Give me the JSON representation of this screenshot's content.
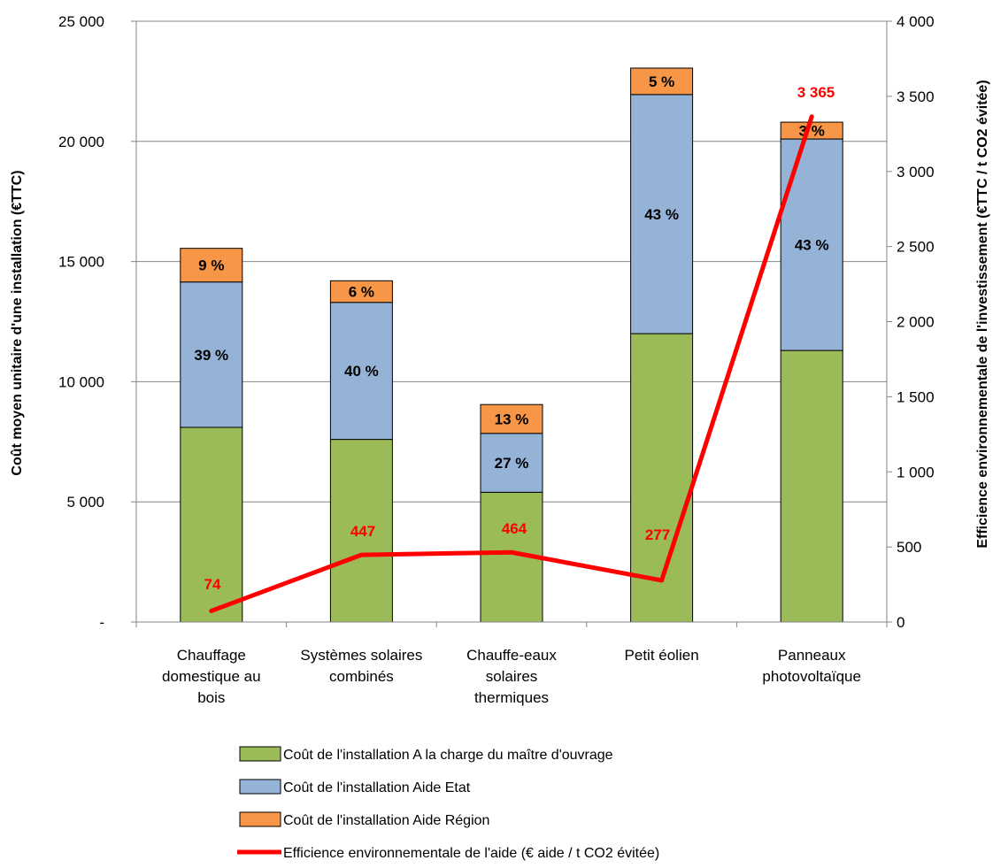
{
  "chart_data": {
    "type": "bar",
    "stacked": true,
    "categories": [
      [
        "Chauffage",
        "domestique au",
        "bois"
      ],
      [
        "Systèmes solaires",
        "combinés"
      ],
      [
        "Chauffe-eaux",
        "solaires",
        "thermiques"
      ],
      [
        "Petit éolien"
      ],
      [
        "Panneaux",
        "photovoltaïque"
      ]
    ],
    "series": [
      {
        "name": "Coût de l'installation A la charge du maître d'ouvrage",
        "color": "#9bbb59",
        "values": [
          8100,
          7600,
          5400,
          12000,
          11300
        ]
      },
      {
        "name": "Coût de l'installation Aide Etat",
        "color": "#95b3d7",
        "values": [
          6050,
          5700,
          2450,
          9950,
          8800
        ],
        "labels": [
          "39 %",
          "40 %",
          "27 %",
          "43 %",
          "43 %"
        ]
      },
      {
        "name": "Coût de l'installation Aide Région",
        "color": "#f79646",
        "values": [
          1400,
          900,
          1200,
          1100,
          700
        ],
        "labels": [
          "9 %",
          "6 %",
          "13 %",
          "5 %",
          "3 %"
        ]
      }
    ],
    "line": {
      "name": "Efficience environnementale de l'aide (€ aide / t CO2 évitée)",
      "color": "#ff0000",
      "axis": "right",
      "values": [
        74,
        447,
        464,
        277,
        3365
      ],
      "labels": [
        "74",
        "447",
        "464",
        "277",
        "3 365"
      ]
    },
    "ylabel": "Coût moyen unitaire d'une installation (€TTC)",
    "y2label": "Efficience environnementale de l'investissement  (€TTC / t CO2 évitée)",
    "ylim": [
      0,
      25000
    ],
    "y2lim": [
      0,
      4000
    ],
    "yticks": [
      0,
      5000,
      10000,
      15000,
      20000,
      25000
    ],
    "ytick_labels": [
      "-",
      "5 000",
      "10 000",
      "15 000",
      "20 000",
      "25 000"
    ],
    "y2ticks": [
      0,
      500,
      1000,
      1500,
      2000,
      2500,
      3000,
      3500,
      4000
    ],
    "y2tick_labels": [
      "0",
      "500",
      "1 000",
      "1 500",
      "2 000",
      "2 500",
      "3 000",
      "3 500",
      "4 000"
    ],
    "grid": true,
    "legend_position": "bottom"
  }
}
